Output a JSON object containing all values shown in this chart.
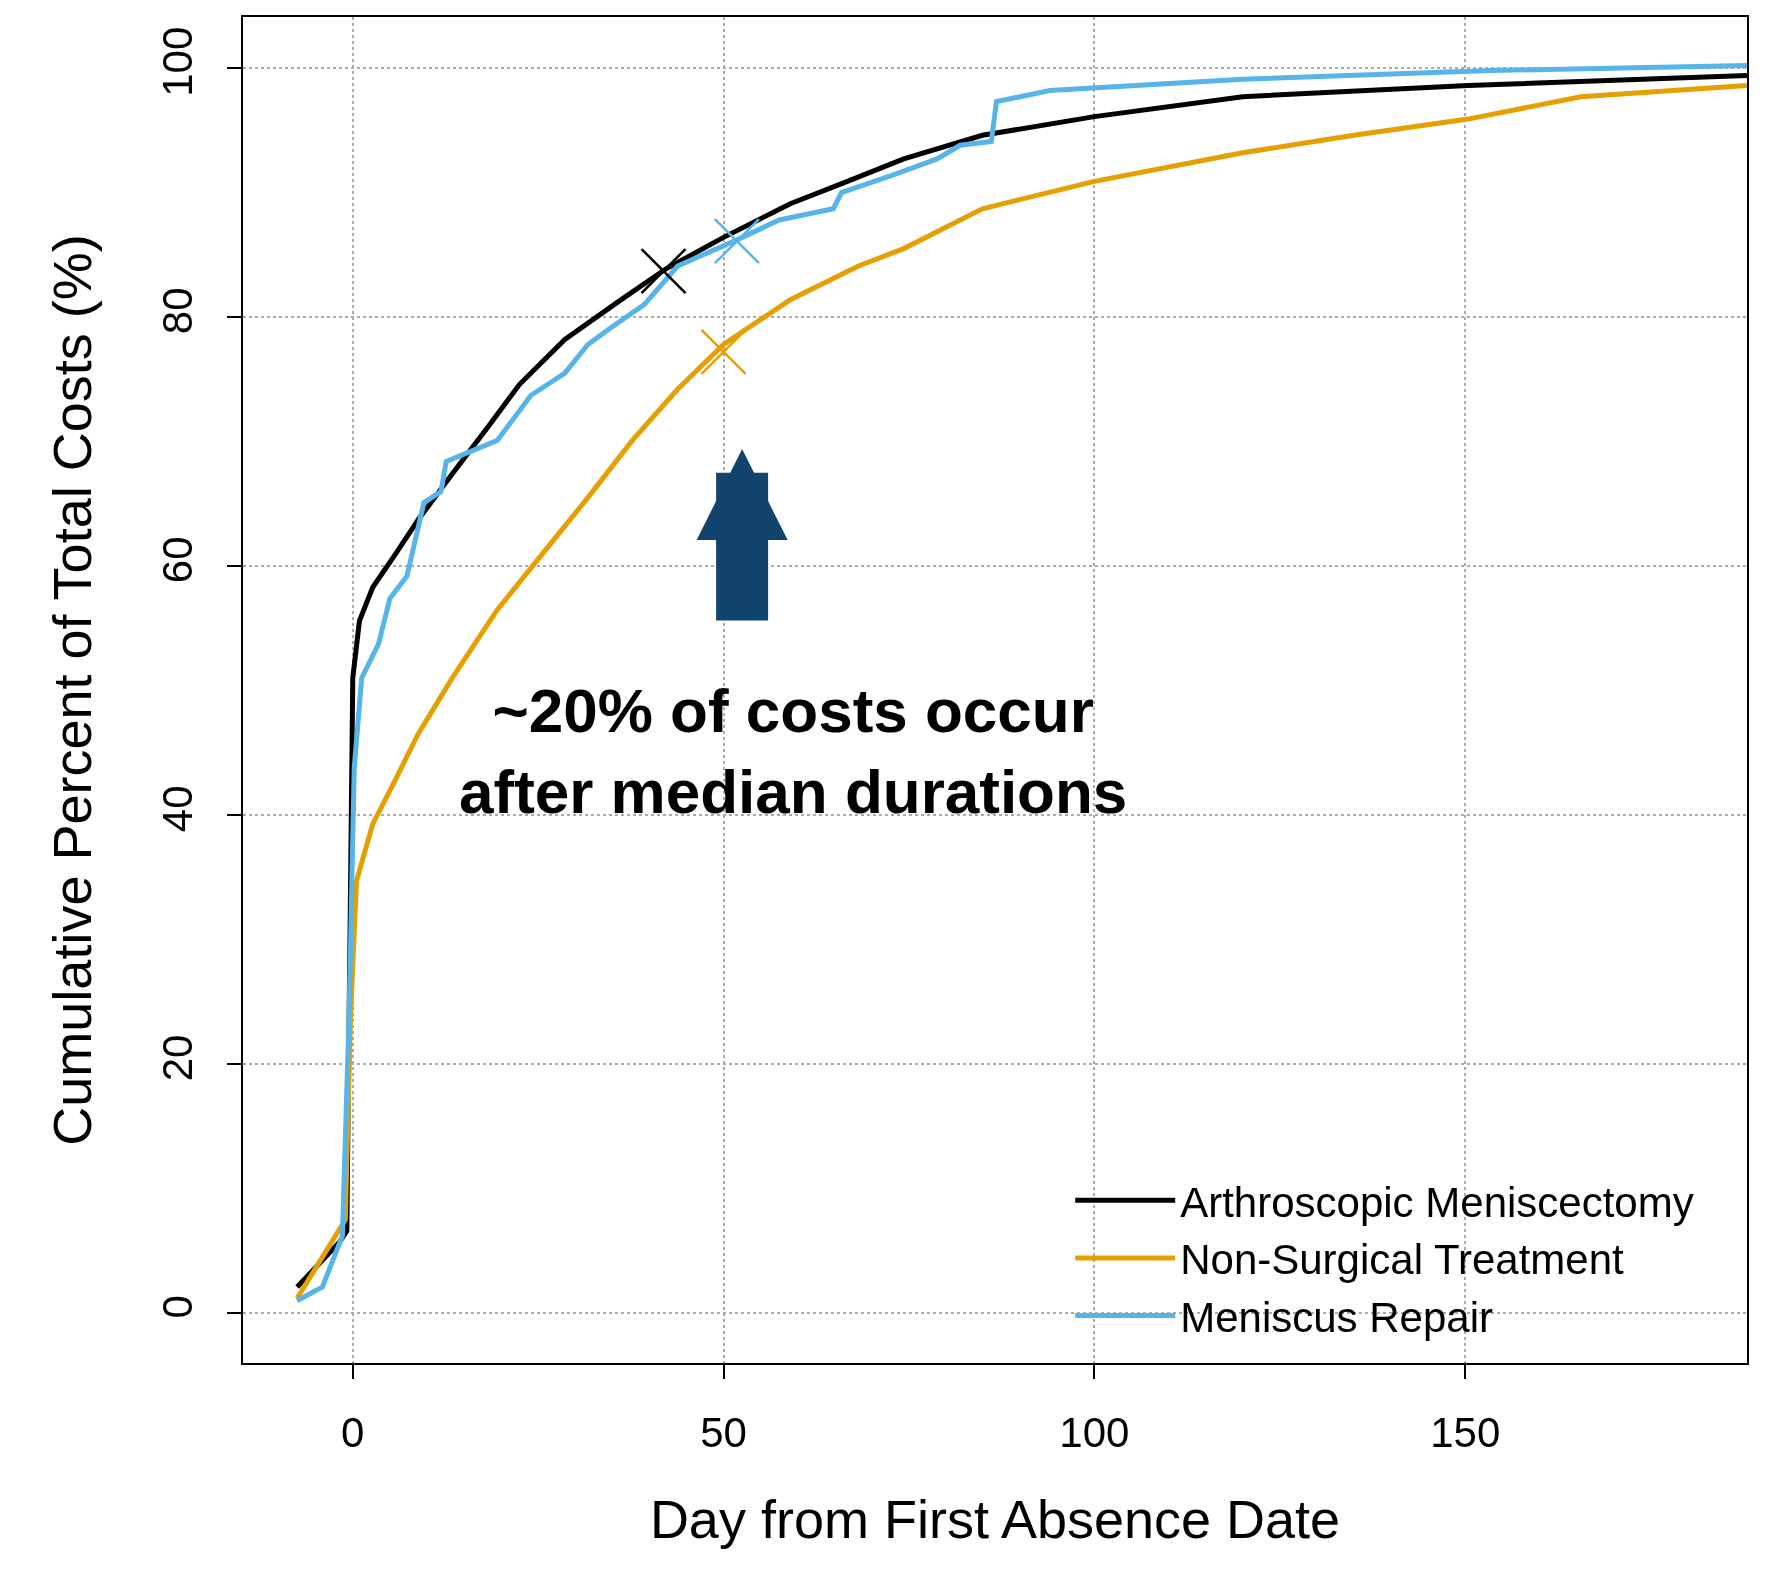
{
  "chart_data": {
    "type": "line",
    "xlabel": "Day from First Absence Date",
    "ylabel": "Cumulative Percent of Total Costs (%)",
    "xlim": [
      -14.8,
      188
    ],
    "xticks": [
      0,
      50,
      100,
      150
    ],
    "ylim": [
      -4,
      104.1
    ],
    "yticks": [
      0,
      20,
      40,
      60,
      80,
      100
    ],
    "grid": true,
    "legend": "bottom right",
    "annotations": [
      "~20% of costs occur\nafter median durations"
    ],
    "series": [
      {
        "name": "Arthroscopic Meniscectomy",
        "color": "#000000",
        "x": [
          -7.5,
          -1.8,
          -0.8,
          0,
          0.9,
          2.7,
          5.8,
          8.8,
          13.4,
          18,
          22.5,
          28.6,
          36.2,
          42.3,
          50,
          59,
          66.7,
          74.3,
          84.9,
          100,
          120,
          150.4,
          188
        ],
        "values": [
          2.1,
          5.7,
          6.6,
          51,
          55.6,
          58.3,
          61,
          63.7,
          67.4,
          71,
          74.6,
          78.2,
          81.4,
          83.9,
          86.4,
          89.1,
          90.9,
          92.7,
          94.6,
          96.1,
          97.7,
          98.6,
          99.4
        ]
      },
      {
        "name": "Non-Surgical Treatment",
        "color": "#e69f00",
        "x": [
          -7.5,
          -1,
          -0.3,
          0.5,
          2.7,
          5.8,
          8.8,
          13.4,
          19.5,
          25.6,
          31.7,
          37.7,
          43.8,
          50,
          59,
          68.2,
          74.3,
          84.9,
          100,
          120,
          135,
          150.4,
          165.6,
          188
        ],
        "values": [
          1.2,
          7.5,
          23.8,
          34.7,
          39.3,
          42.9,
          46.5,
          51,
          56.5,
          61,
          65.5,
          70.1,
          74.2,
          77.8,
          81.4,
          84.1,
          85.5,
          88.7,
          90.9,
          93.2,
          94.6,
          95.9,
          97.7,
          98.6
        ]
      },
      {
        "name": "Meniscus Repair",
        "color": "#56b4e9",
        "x": [
          -7.5,
          -4.1,
          -1.4,
          -0.5,
          0.2,
          1.2,
          3.5,
          5,
          7.3,
          9.6,
          11.9,
          12.6,
          19.5,
          24,
          28.6,
          31.7,
          34.7,
          39.3,
          43.8,
          51.8,
          57.5,
          64.8,
          65.9,
          72.8,
          78.8,
          81.9,
          86.1,
          86.8,
          94,
          120,
          153.4,
          188
        ],
        "values": [
          1.0,
          2.1,
          6.2,
          23.8,
          43.8,
          51,
          53.8,
          57.4,
          59.2,
          65.1,
          66,
          68.4,
          70.1,
          73.7,
          75.5,
          77.8,
          79.1,
          81,
          84.1,
          86.2,
          87.8,
          88.7,
          90,
          91.4,
          92.7,
          93.8,
          94.1,
          97.3,
          98.2,
          99.1,
          99.8,
          100.2
        ]
      },
      {
        "type": "scatter",
        "marker": "cross",
        "color": "#000000",
        "x": [
          41.9
        ],
        "values": [
          83.7
        ]
      },
      {
        "type": "scatter",
        "marker": "cross",
        "color": "#e69f00",
        "x": [
          50
        ],
        "values": [
          77.2
        ]
      },
      {
        "type": "scatter",
        "marker": "cross",
        "color": "#56b4e9",
        "x": [
          51.8
        ],
        "values": [
          86.1
        ]
      }
    ]
  }
}
